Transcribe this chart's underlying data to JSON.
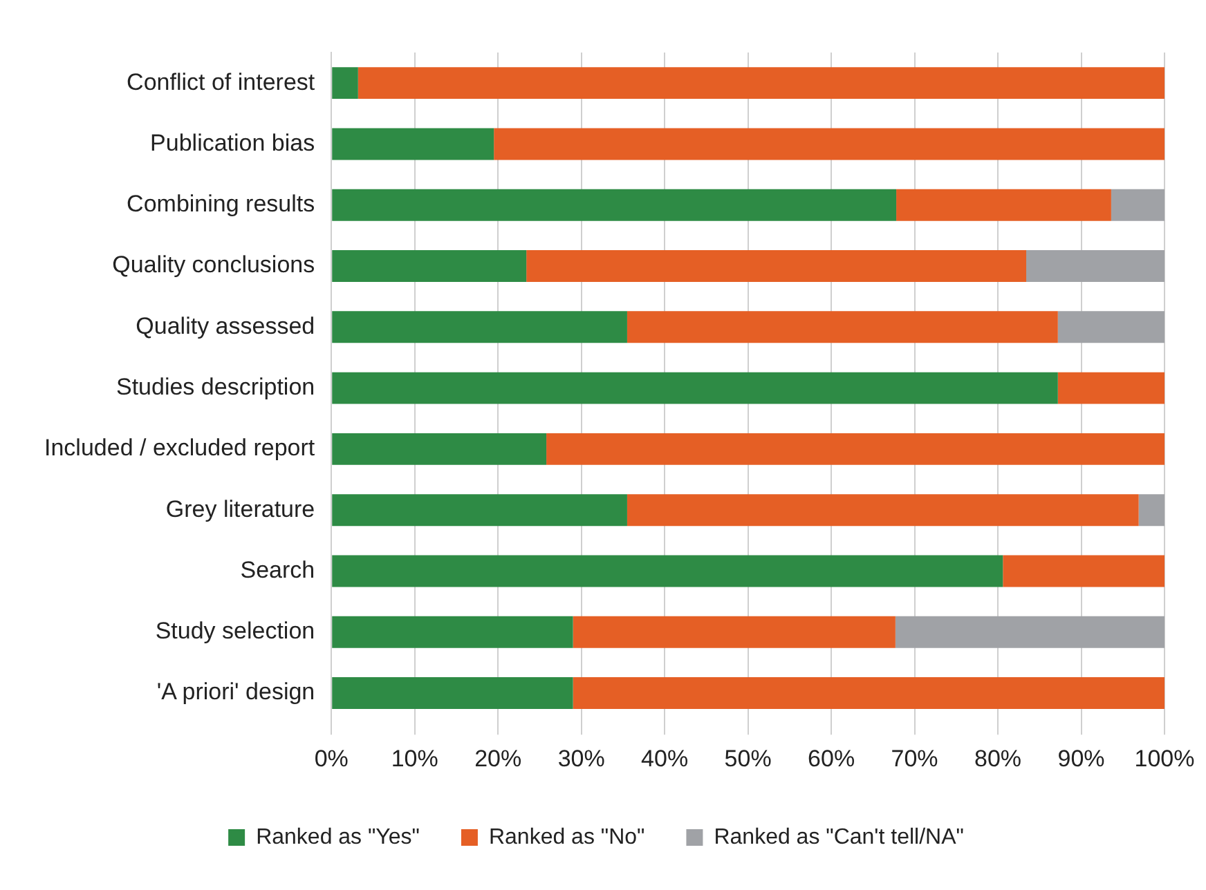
{
  "chart_data": {
    "type": "bar",
    "orientation": "horizontal",
    "stacked": true,
    "categories": [
      "Conflict of interest",
      "Publication bias",
      "Combining results",
      "Quality conclusions",
      "Quality assessed",
      "Studies description",
      "Included / excluded report",
      "Grey literature",
      "Search",
      "Study selection",
      "'A priori' design"
    ],
    "series": [
      {
        "name": "Ranked as \"Yes\"",
        "color": "#2e8b45",
        "values": [
          3.2,
          19.5,
          67.8,
          23.4,
          35.5,
          87.2,
          25.8,
          35.5,
          80.6,
          29,
          29
        ]
      },
      {
        "name": "Ranked as \"No\"",
        "color": "#e55f25",
        "values": [
          96.8,
          80.5,
          25.8,
          60,
          51.7,
          12.8,
          74.2,
          61.4,
          19.4,
          38.7,
          71
        ]
      },
      {
        "name": "Ranked as \"Can't tell/NA\"",
        "color": "#a0a2a6",
        "values": [
          0,
          0,
          6.4,
          16.6,
          12.8,
          0,
          0,
          3.1,
          0,
          32.3,
          0
        ]
      }
    ],
    "xlim": [
      0,
      100
    ],
    "xticks": [
      {
        "value": 0,
        "label": "0%"
      },
      {
        "value": 10,
        "label": "10%"
      },
      {
        "value": 20,
        "label": "20%"
      },
      {
        "value": 30,
        "label": "30%"
      },
      {
        "value": 40,
        "label": "40%"
      },
      {
        "value": 50,
        "label": "50%"
      },
      {
        "value": 60,
        "label": "60%"
      },
      {
        "value": 70,
        "label": "70%"
      },
      {
        "value": 80,
        "label": "80%"
      },
      {
        "value": 90,
        "label": "90%"
      },
      {
        "value": 100,
        "label": "100%"
      }
    ],
    "grid": "x",
    "legend": "bottom"
  }
}
